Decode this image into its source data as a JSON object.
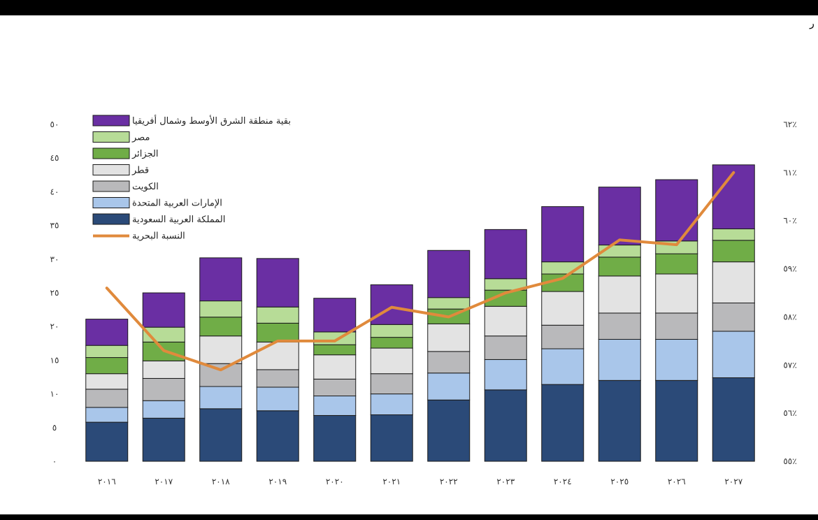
{
  "page": {
    "corner_glyph": "ر"
  },
  "chart_data": {
    "type": "bar",
    "stacked": true,
    "categories": [
      "٢٠١٦",
      "٢٠١٧",
      "٢٠١٨",
      "٢٠١٩",
      "٢٠٢٠",
      "٢٠٢١",
      "٢٠٢٢",
      "٢٠٢٣",
      "٢٠٢٤",
      "٢٠٢٥",
      "٢٠٢٦",
      "٢٠٢٧"
    ],
    "ylim": [
      0,
      50
    ],
    "yticks": [
      0,
      5,
      10,
      15,
      20,
      25,
      30,
      35,
      40,
      45,
      50
    ],
    "ytick_labels": [
      "٠",
      "٥",
      "١٠",
      "١٥",
      "٢٠",
      "٢٥",
      "٣٠",
      "٣٥",
      "٤٠",
      "٤٥",
      "٥٠"
    ],
    "y2lim": [
      55,
      62
    ],
    "y2ticks": [
      55,
      56,
      57,
      58,
      59,
      60,
      61,
      62
    ],
    "y2tick_labels": [
      "٥٥٪",
      "٥٦٪",
      "٥٧٪",
      "٥٨٪",
      "٥٩٪",
      "٦٠٪",
      "٦١٪",
      "٦٢٪"
    ],
    "grid": false,
    "legend_position": "top-left",
    "series": [
      {
        "name": "المملكة العربية السعودية",
        "color": "#2b4a78",
        "values": [
          5.8,
          6.4,
          7.8,
          7.5,
          6.8,
          6.9,
          9.1,
          10.6,
          11.4,
          12.0,
          12.0,
          12.4
        ]
      },
      {
        "name": "الإمارات العربية المتحدة",
        "color": "#a9c6ea",
        "values": [
          2.2,
          2.6,
          3.3,
          3.5,
          2.9,
          3.1,
          4.0,
          4.5,
          5.3,
          6.1,
          6.1,
          6.9
        ]
      },
      {
        "name": "الكويت",
        "color": "#b9b9bb",
        "values": [
          2.7,
          3.3,
          3.4,
          2.6,
          2.5,
          3.0,
          3.2,
          3.5,
          3.5,
          3.9,
          3.9,
          4.2
        ]
      },
      {
        "name": "قطر",
        "color": "#e3e3e3",
        "values": [
          2.3,
          2.6,
          4.1,
          4.1,
          3.6,
          3.8,
          4.1,
          4.4,
          5.0,
          5.5,
          5.8,
          6.1
        ]
      },
      {
        "name": "الجزائر",
        "color": "#70ad47",
        "values": [
          2.4,
          2.8,
          2.8,
          2.8,
          1.5,
          1.6,
          2.2,
          2.4,
          2.6,
          2.8,
          3.0,
          3.2
        ]
      },
      {
        "name": "مصر",
        "color": "#b7dc97",
        "values": [
          1.8,
          2.2,
          2.4,
          2.4,
          1.9,
          1.9,
          1.7,
          1.7,
          1.8,
          1.8,
          1.9,
          1.7
        ]
      },
      {
        "name": "بقية منطقة الشرق الأوسط وشمال أفريقيا",
        "color": "#6a2fa3",
        "values": [
          3.9,
          5.1,
          6.4,
          7.2,
          5.0,
          5.9,
          7.0,
          7.3,
          8.2,
          8.6,
          9.1,
          9.5
        ]
      }
    ],
    "line": {
      "name": "النسبة البحرية",
      "color": "#e08a3c",
      "axis": "right",
      "values": [
        58.6,
        57.3,
        56.9,
        57.5,
        57.5,
        58.2,
        58.0,
        58.5,
        58.8,
        59.6,
        59.5,
        61.0
      ]
    }
  }
}
